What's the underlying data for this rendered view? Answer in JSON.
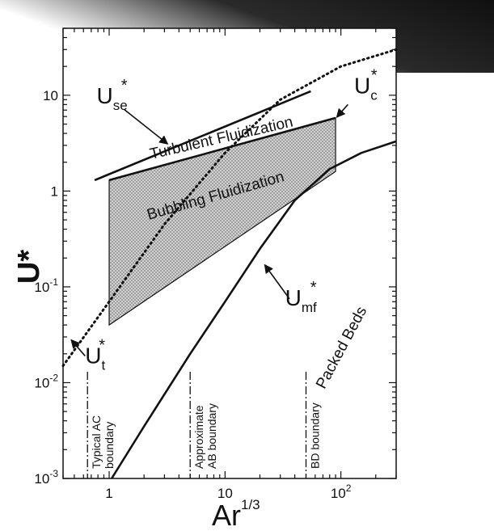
{
  "chart_data": {
    "type": "line",
    "title": "",
    "xlabel": "Ar",
    "xlabel_exp": "1/3",
    "ylabel": "U*",
    "xscale": "log",
    "yscale": "log",
    "xlim": [
      0.4,
      300
    ],
    "ylim": [
      0.001,
      50
    ],
    "x_ticks": [
      {
        "value": 1,
        "label": "1"
      },
      {
        "value": 10,
        "label": "10"
      },
      {
        "value": 100,
        "label": "10",
        "exp": "2"
      }
    ],
    "y_ticks": [
      {
        "value": 0.001,
        "label": "10",
        "exp": "-3"
      },
      {
        "value": 0.01,
        "label": "10",
        "exp": "-2"
      },
      {
        "value": 0.1,
        "label": "10",
        "exp": "-1"
      },
      {
        "value": 1,
        "label": "1"
      },
      {
        "value": 10,
        "label": "10"
      }
    ],
    "series": [
      {
        "id": "u_se",
        "style": "solid",
        "x": [
          0.75,
          55
        ],
        "y": [
          1.3,
          11
        ]
      },
      {
        "id": "u_c",
        "style": "solid",
        "x": [
          1.0,
          90
        ],
        "y": [
          1.3,
          5.8
        ]
      },
      {
        "id": "u_t",
        "style": "dotted",
        "x": [
          0.4,
          1,
          3,
          10,
          30,
          100,
          300
        ],
        "y": [
          0.015,
          0.07,
          0.45,
          2.5,
          9,
          20,
          30
        ]
      },
      {
        "id": "u_mf",
        "style": "solid",
        "x": [
          1.05,
          2,
          5,
          10,
          20,
          40,
          80,
          150,
          300
        ],
        "y": [
          0.001,
          0.0035,
          0.02,
          0.07,
          0.25,
          0.8,
          1.7,
          2.5,
          3.3
        ]
      }
    ],
    "regions": [
      {
        "id": "bubbling",
        "fill": "#b0b0b0",
        "x": [
          1.0,
          90,
          90,
          1.0
        ],
        "y": [
          1.3,
          5.8,
          1.6,
          0.04
        ]
      }
    ],
    "vlines": [
      {
        "x": 0.65,
        "label": "Typical AC\nboundary"
      },
      {
        "x": 5.0,
        "label": "Approximate\nAB boundary"
      },
      {
        "x": 50,
        "label": "BD boundary"
      }
    ],
    "region_labels": [
      {
        "text": "Turbulent Fluidization",
        "x": 9.5,
        "y": 3.2,
        "angle": -13
      },
      {
        "text": "Bubbling Fluidization",
        "x": 8.5,
        "y": 0.8,
        "angle": -16
      },
      {
        "text": "Packed Beds",
        "x": 110,
        "y": 0.022,
        "angle": -62
      }
    ],
    "curve_labels": [
      {
        "text": "U",
        "sub": "se",
        "star": "*"
      },
      {
        "text": "U",
        "sub": "c",
        "star": "*"
      },
      {
        "text": "U",
        "sub": "t",
        "star": "*"
      },
      {
        "text": "U",
        "sub": "mf",
        "star": "*"
      }
    ]
  }
}
